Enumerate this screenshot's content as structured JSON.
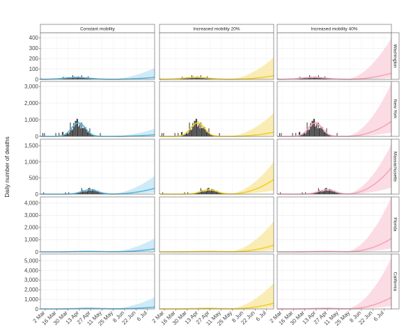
{
  "chart_data": {
    "type": "area",
    "ylabel": "Daily number of deaths",
    "x_tick_labels": [
      "2 Mar",
      "16 Mar",
      "30 Mar",
      "13 Apr",
      "27 Apr",
      "11 May",
      "25 May",
      "8 Jun",
      "22 Jun",
      "6 Jul"
    ],
    "x_range": [
      "2020-02-25",
      "2020-07-15"
    ],
    "observed_end": "2020-05-18",
    "columns": [
      {
        "name": "Constant mobility",
        "color": "#5bb8e0",
        "fill": "#c7e8f6"
      },
      {
        "name": "Increased mobility 20%",
        "color": "#f2cf28",
        "fill": "#f9e9a8"
      },
      {
        "name": "Increased mobility 40%",
        "color": "#f4a6b8",
        "fill": "#fbd6df"
      }
    ],
    "bar_color": "#3d3d3d",
    "rows": [
      {
        "name": "Washington",
        "yticks": [
          0,
          100,
          200,
          300,
          400
        ],
        "ylim": [
          0,
          450
        ],
        "observed": {
          "peak_date": "2020-04-10",
          "peak_value": 20,
          "spread_days": 20,
          "max_value": 40
        },
        "scenarios": [
          {
            "final_mean": 20,
            "final_upper": 110
          },
          {
            "final_mean": 35,
            "final_upper": 210
          },
          {
            "final_mean": 60,
            "final_upper": 400
          }
        ]
      },
      {
        "name": "New York",
        "yticks": [
          0,
          1000,
          2000,
          3000
        ],
        "ylim": [
          0,
          3300
        ],
        "observed": {
          "peak_date": "2020-04-12",
          "peak_value": 850,
          "spread_days": 11,
          "max_value": 1000
        },
        "scenarios": [
          {
            "final_mean": 100,
            "final_upper": 450
          },
          {
            "final_mean": 250,
            "final_upper": 1400
          },
          {
            "final_mean": 900,
            "final_upper": 3200
          }
        ]
      },
      {
        "name": "Massachusetts",
        "yticks": [
          0,
          500,
          1000,
          1500
        ],
        "ylim": [
          0,
          1700
        ],
        "observed": {
          "peak_date": "2020-04-26",
          "peak_value": 140,
          "spread_days": 13,
          "max_value": 280
        },
        "scenarios": [
          {
            "final_mean": 180,
            "final_upper": 560
          },
          {
            "final_mean": 450,
            "final_upper": 1000
          },
          {
            "final_mean": 820,
            "final_upper": 1550
          }
        ]
      },
      {
        "name": "Florida",
        "yticks": [
          0,
          1000,
          2000,
          3000,
          4000
        ],
        "ylim": [
          0,
          4500
        ],
        "observed": {
          "peak_date": "2020-04-25",
          "peak_value": 45,
          "spread_days": 20,
          "max_value": 70
        },
        "scenarios": [
          {
            "final_mean": 250,
            "final_upper": 1100
          },
          {
            "final_mean": 550,
            "final_upper": 2500
          },
          {
            "final_mean": 1100,
            "final_upper": 4500
          }
        ]
      },
      {
        "name": "California",
        "yticks": [
          0,
          1000,
          2000,
          3000,
          4000,
          5000
        ],
        "ylim": [
          0,
          5700
        ],
        "observed": {
          "peak_date": "2020-04-25",
          "peak_value": 70,
          "spread_days": 20,
          "max_value": 110
        },
        "scenarios": [
          {
            "final_mean": 200,
            "final_upper": 1200
          },
          {
            "final_mean": 600,
            "final_upper": 2700
          },
          {
            "final_mean": 1200,
            "final_upper": 5300
          }
        ]
      }
    ]
  }
}
